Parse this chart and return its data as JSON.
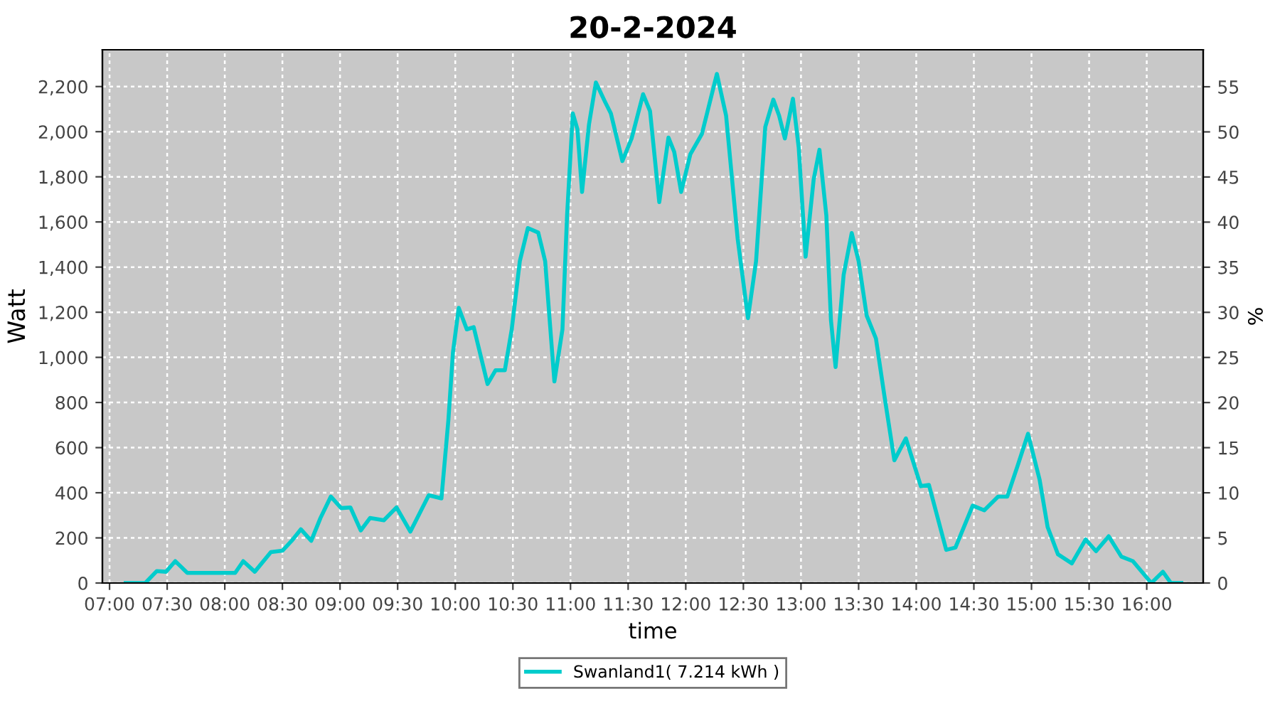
{
  "chart_data": {
    "type": "line",
    "title": "20-2-2024",
    "xlabel": "time",
    "ylabel": "Watt",
    "y2label": "%",
    "xlim": [
      6.938,
      16.49
    ],
    "ylim": [
      0,
      2363
    ],
    "y2lim": [
      0,
      59.1
    ],
    "xticks": [
      {
        "value": 7,
        "label": "07:00"
      },
      {
        "value": 7.5,
        "label": "07:30"
      },
      {
        "value": 8,
        "label": "08:00"
      },
      {
        "value": 8.5,
        "label": "08:30"
      },
      {
        "value": 9,
        "label": "09:00"
      },
      {
        "value": 9.5,
        "label": "09:30"
      },
      {
        "value": 10,
        "label": "10:00"
      },
      {
        "value": 10.5,
        "label": "10:30"
      },
      {
        "value": 11,
        "label": "11:00"
      },
      {
        "value": 11.5,
        "label": "11:30"
      },
      {
        "value": 12,
        "label": "12:00"
      },
      {
        "value": 12.5,
        "label": "12:30"
      },
      {
        "value": 13,
        "label": "13:00"
      },
      {
        "value": 13.5,
        "label": "13:30"
      },
      {
        "value": 14,
        "label": "14:00"
      },
      {
        "value": 14.5,
        "label": "14:30"
      },
      {
        "value": 15,
        "label": "15:00"
      },
      {
        "value": 15.5,
        "label": "15:30"
      },
      {
        "value": 16,
        "label": "16:00"
      }
    ],
    "yticks": [
      {
        "value": 0,
        "label": "0"
      },
      {
        "value": 200,
        "label": "200"
      },
      {
        "value": 400,
        "label": "400"
      },
      {
        "value": 600,
        "label": "600"
      },
      {
        "value": 800,
        "label": "800"
      },
      {
        "value": 1000,
        "label": "1,000"
      },
      {
        "value": 1200,
        "label": "1,200"
      },
      {
        "value": 1400,
        "label": "1,400"
      },
      {
        "value": 1600,
        "label": "1,600"
      },
      {
        "value": 1800,
        "label": "1,800"
      },
      {
        "value": 2000,
        "label": "2,000"
      },
      {
        "value": 2200,
        "label": "2,200"
      }
    ],
    "y2ticks": [
      0,
      5,
      10,
      15,
      20,
      25,
      30,
      35,
      40,
      45,
      50,
      55
    ],
    "grid": true,
    "legend": "bottom",
    "marker": "none",
    "line_style": "solid",
    "series": [
      {
        "name": "Swanland1( 7.214 kWh )",
        "color": "#00cccc",
        "x": [
          7.14,
          7.31,
          7.41,
          7.49,
          7.57,
          7.675,
          8.02,
          8.09,
          8.16,
          8.26,
          8.4,
          8.5,
          8.58,
          8.66,
          8.75,
          8.83,
          8.92,
          9.01,
          9.09,
          9.18,
          9.26,
          9.38,
          9.49,
          9.61,
          9.77,
          9.88,
          9.94,
          9.98,
          10.03,
          10.1,
          10.16,
          10.28,
          10.35,
          10.43,
          10.49,
          10.56,
          10.63,
          10.72,
          10.78,
          10.86,
          10.93,
          10.97,
          11.02,
          11.06,
          11.1,
          11.16,
          11.22,
          11.3,
          11.35,
          11.45,
          11.53,
          11.63,
          11.69,
          11.77,
          11.85,
          11.9,
          11.96,
          12.04,
          12.14,
          12.27,
          12.35,
          12.45,
          12.54,
          12.61,
          12.69,
          12.76,
          12.81,
          12.86,
          12.93,
          12.98,
          13.04,
          13.11,
          13.16,
          13.22,
          13.26,
          13.3,
          13.37,
          13.44,
          13.5,
          13.57,
          13.65,
          13.72,
          13.81,
          13.91,
          14.04,
          14.11,
          14.26,
          14.34,
          14.49,
          14.59,
          14.71,
          14.79,
          14.88,
          14.97,
          15.07,
          15.14,
          15.23,
          15.35,
          15.47,
          15.56,
          15.67,
          15.78,
          15.88,
          16.04,
          16.14,
          16.21,
          16.3
        ],
        "values": [
          0,
          0,
          53,
          50,
          97,
          45,
          45,
          45,
          97,
          50,
          137,
          143,
          187,
          238,
          187,
          288,
          383,
          332,
          335,
          233,
          288,
          278,
          335,
          228,
          389,
          375,
          721,
          1023,
          1219,
          1124,
          1134,
          882,
          943,
          943,
          1124,
          1426,
          1573,
          1553,
          1426,
          893,
          1124,
          1628,
          2081,
          2011,
          1733,
          2031,
          2218,
          2132,
          2081,
          1870,
          1970,
          2166,
          2091,
          1688,
          1974,
          1910,
          1733,
          1900,
          1990,
          2256,
          2071,
          1527,
          1174,
          1426,
          2021,
          2142,
          2071,
          1970,
          2146,
          1930,
          1446,
          1789,
          1920,
          1628,
          1164,
          957,
          1366,
          1551,
          1426,
          1185,
          1084,
          842,
          544,
          641,
          429,
          435,
          147,
          157,
          343,
          322,
          383,
          383,
          520,
          661,
          459,
          248,
          127,
          87,
          193,
          141,
          207,
          117,
          97,
          0,
          50,
          0,
          0
        ]
      }
    ]
  }
}
